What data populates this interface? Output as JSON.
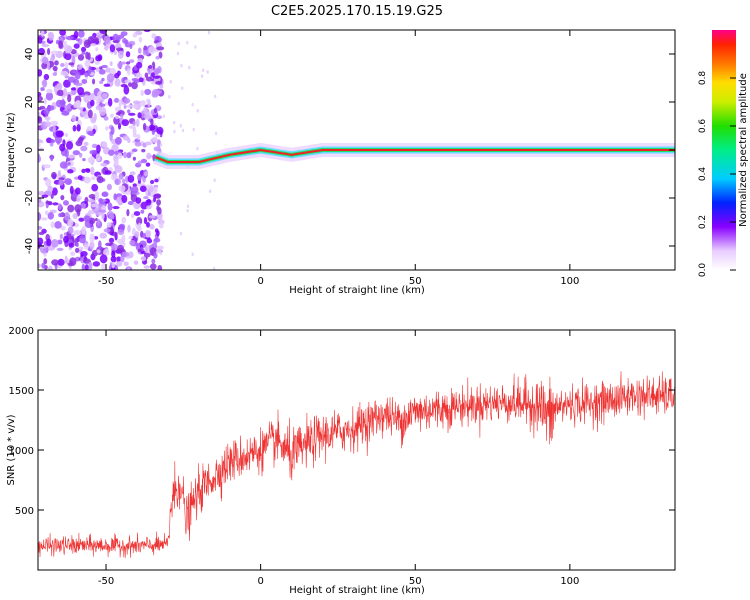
{
  "title": "C2E5.2025.170.15.19.G25",
  "chart_data": [
    {
      "type": "heatmap",
      "xlabel": "Height of straight line (km)",
      "ylabel": "Frequency (Hz)",
      "xlim": [
        -72,
        134
      ],
      "ylim": [
        -50,
        50
      ],
      "x_ticks": [
        -50,
        0,
        50,
        100
      ],
      "y_ticks": [
        -40,
        -20,
        0,
        20,
        40
      ],
      "colorbar": {
        "label": "Normalized spectral amplitude",
        "range": [
          0,
          1
        ],
        "ticks": [
          "0.0",
          "0.2",
          "0.4",
          "0.6",
          "0.8"
        ]
      },
      "ridge": {
        "description_points_x": [
          -34,
          -30,
          -20,
          -10,
          0,
          10,
          20,
          30,
          40,
          50,
          60,
          80,
          100,
          134
        ],
        "description_points_freq": [
          -3,
          -5,
          -5,
          -2,
          0,
          -2,
          0,
          0,
          0,
          0,
          0,
          0,
          0,
          0
        ]
      },
      "noise_region_x": [
        -72,
        -34
      ]
    },
    {
      "type": "line",
      "xlabel": "Height of straight line (km)",
      "ylabel": "SNR (10 * v/v)",
      "xlim": [
        -72,
        134
      ],
      "ylim": [
        0,
        2000
      ],
      "x_ticks": [
        -50,
        0,
        50,
        100
      ],
      "y_ticks": [
        500,
        1000,
        1500,
        2000
      ],
      "line_color": "#ee3333",
      "envelope": {
        "x": [
          -72,
          -60,
          -40,
          -30,
          -29,
          -26,
          -24,
          -22,
          -20,
          -15,
          -10,
          -5,
          0,
          5,
          10,
          15,
          20,
          30,
          40,
          44,
          45,
          50,
          60,
          70,
          80,
          90,
          94,
          95,
          100,
          110,
          120,
          134
        ],
        "mean": [
          200,
          205,
          200,
          210,
          550,
          750,
          400,
          550,
          650,
          780,
          900,
          950,
          1000,
          1080,
          950,
          1050,
          1120,
          1180,
          1300,
          1250,
          1250,
          1320,
          1350,
          1380,
          1400,
          1380,
          1250,
          1350,
          1380,
          1400,
          1450,
          1450
        ],
        "spread": [
          70,
          70,
          70,
          70,
          250,
          180,
          200,
          150,
          170,
          160,
          160,
          160,
          160,
          170,
          200,
          180,
          170,
          160,
          150,
          150,
          170,
          170,
          150,
          150,
          150,
          200,
          300,
          160,
          150,
          150,
          150,
          150
        ]
      }
    }
  ]
}
